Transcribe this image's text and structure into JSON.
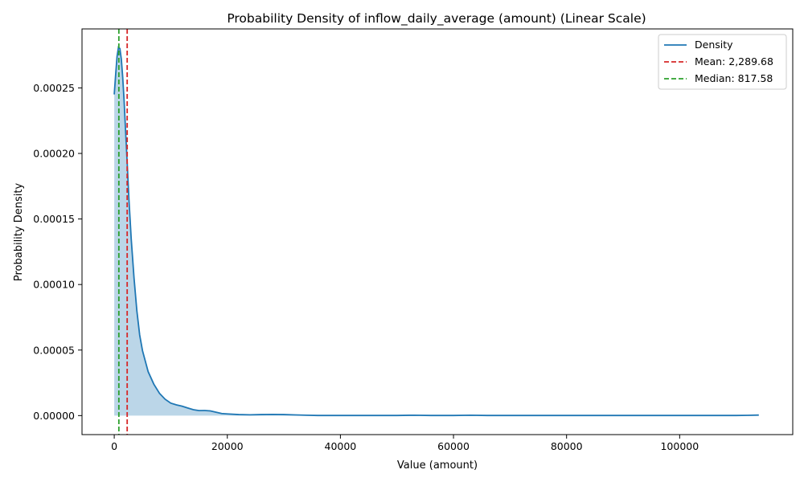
{
  "chart_data": {
    "type": "area",
    "title": "Probability Density of inflow_daily_average (amount) (Linear Scale)",
    "xlabel": "Value (amount)",
    "ylabel": "Probability Density",
    "xlim": [
      -5700,
      120000
    ],
    "ylim": [
      -1.45e-05,
      0.000295
    ],
    "xticks": [
      0,
      20000,
      40000,
      60000,
      80000,
      100000
    ],
    "xtick_labels": [
      "0",
      "20000",
      "40000",
      "60000",
      "80000",
      "100000"
    ],
    "yticks": [
      0,
      5e-05,
      0.0001,
      0.00015,
      0.0002,
      0.00025
    ],
    "ytick_labels": [
      "0.00000",
      "0.00005",
      "0.00010",
      "0.00015",
      "0.00020",
      "0.00025"
    ],
    "grid": false,
    "legend_position": "top-right",
    "series": [
      {
        "name": "Density",
        "color": "#1f77b4",
        "fill_color": "#1f77b4",
        "x": [
          0,
          250,
          500,
          750,
          1000,
          1250,
          1500,
          1750,
          2000,
          2300,
          2600,
          3000,
          3500,
          4000,
          4500,
          5000,
          6000,
          7000,
          8000,
          9000,
          10000,
          11000,
          12000,
          13000,
          14000,
          15000,
          16000,
          17000,
          18000,
          19000,
          20000,
          22000,
          24000,
          26000,
          28000,
          30000,
          32000,
          34000,
          36000,
          40000,
          45000,
          50000,
          53000,
          56000,
          60000,
          63000,
          66000,
          70000,
          80000,
          90000,
          100000,
          105000,
          110000,
          112000,
          114000
        ],
        "y": [
          0.000245,
          0.00026,
          0.000274,
          0.000281,
          0.00028,
          0.000272,
          0.000258,
          0.00024,
          0.000218,
          0.000192,
          0.000165,
          0.000135,
          0.000105,
          8e-05,
          6.15e-05,
          4.95e-05,
          3.35e-05,
          2.4e-05,
          1.7e-05,
          1.25e-05,
          9.5e-06,
          8.2e-06,
          7.2e-06,
          5.8e-06,
          4.5e-06,
          3.8e-06,
          3.9e-06,
          3.6e-06,
          2.6e-06,
          1.6e-06,
          1.3e-06,
          8e-07,
          6e-07,
          8e-07,
          9e-07,
          8e-07,
          5e-07,
          3e-07,
          1e-07,
          1e-07,
          1e-07,
          1e-07,
          3e-07,
          1e-07,
          1e-07,
          3e-07,
          1e-07,
          1e-07,
          1e-07,
          1e-07,
          1e-07,
          1e-07,
          1e-07,
          2e-07,
          4e-07
        ]
      },
      {
        "name": "Mean: 2,289.68",
        "color": "#d62728",
        "line_style": "dashed",
        "x_value": 2289.68
      },
      {
        "name": "Median: 817.58",
        "color": "#2ca02c",
        "line_style": "dashed",
        "x_value": 817.58
      }
    ]
  }
}
